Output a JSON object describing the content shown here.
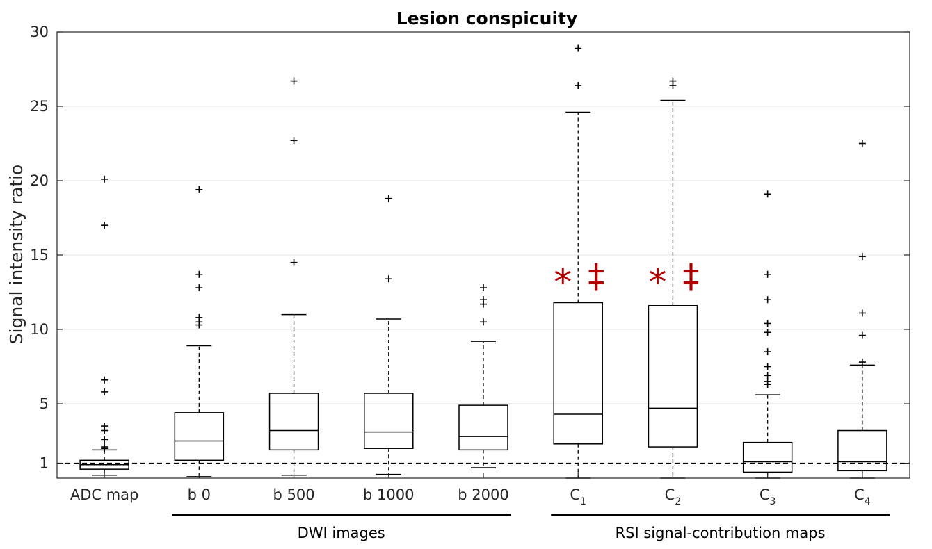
{
  "chart_data": {
    "type": "boxplot",
    "title": "Lesion conspicuity",
    "xlabel": "",
    "ylabel": "Signal intensity ratio",
    "ylim": [
      0,
      30
    ],
    "yticks": [
      1,
      5,
      10,
      15,
      20,
      25,
      30
    ],
    "grid": "horizontal",
    "reference_line": {
      "y": 1,
      "style": "dashed"
    },
    "categories": [
      {
        "main": "ADC map",
        "sub": ""
      },
      {
        "main": "b 0",
        "sub": ""
      },
      {
        "main": "b 500",
        "sub": ""
      },
      {
        "main": "b 1000",
        "sub": ""
      },
      {
        "main": "b 2000",
        "sub": ""
      },
      {
        "main": "C",
        "sub": "1"
      },
      {
        "main": "C",
        "sub": "2"
      },
      {
        "main": "C",
        "sub": "3"
      },
      {
        "main": "C",
        "sub": "4"
      }
    ],
    "boxes": [
      {
        "whisker_low": 0.2,
        "q1": 0.6,
        "median": 0.9,
        "q3": 1.2,
        "whisker_high": 1.9,
        "outliers": [
          20.1,
          17.0,
          6.6,
          5.8,
          3.5,
          3.2,
          2.6,
          2.1,
          2.0
        ]
      },
      {
        "whisker_low": 0.1,
        "q1": 1.2,
        "median": 2.5,
        "q3": 4.4,
        "whisker_high": 8.9,
        "outliers": [
          19.4,
          13.7,
          12.8,
          10.8,
          10.5,
          10.3
        ]
      },
      {
        "whisker_low": 0.2,
        "q1": 1.9,
        "median": 3.2,
        "q3": 5.7,
        "whisker_high": 11.0,
        "outliers": [
          26.7,
          22.7,
          14.5
        ]
      },
      {
        "whisker_low": 0.25,
        "q1": 2.0,
        "median": 3.1,
        "q3": 5.7,
        "whisker_high": 10.7,
        "outliers": [
          18.8,
          13.4
        ]
      },
      {
        "whisker_low": 0.7,
        "q1": 1.9,
        "median": 2.8,
        "q3": 4.9,
        "whisker_high": 9.2,
        "outliers": [
          12.8,
          12.0,
          11.7,
          10.5
        ]
      },
      {
        "whisker_low": 0.0,
        "q1": 2.3,
        "median": 4.3,
        "q3": 11.8,
        "whisker_high": 24.6,
        "outliers": [
          28.9,
          26.4
        ]
      },
      {
        "whisker_low": 0.0,
        "q1": 2.1,
        "median": 4.7,
        "q3": 11.6,
        "whisker_high": 25.4,
        "outliers": [
          26.7,
          26.4
        ]
      },
      {
        "whisker_low": 0.0,
        "q1": 0.4,
        "median": 1.1,
        "q3": 2.4,
        "whisker_high": 5.6,
        "outliers": [
          19.1,
          13.7,
          12.0,
          10.4,
          9.8,
          8.5,
          7.5,
          6.9,
          6.5,
          6.3
        ]
      },
      {
        "whisker_low": 0.0,
        "q1": 0.5,
        "median": 1.1,
        "q3": 3.2,
        "whisker_high": 7.6,
        "outliers": [
          22.5,
          14.9,
          11.1,
          9.6,
          7.8
        ]
      }
    ],
    "significance_markers": [
      {
        "category_index": 5,
        "symbols": [
          "*",
          "‡"
        ],
        "color": "#b00000"
      },
      {
        "category_index": 6,
        "symbols": [
          "*",
          "‡"
        ],
        "color": "#b00000"
      }
    ],
    "groups": [
      {
        "label": "DWI images",
        "from_index": 1,
        "to_index": 4
      },
      {
        "label": "RSI signal-contribution maps",
        "from_index": 5,
        "to_index": 8
      }
    ]
  }
}
